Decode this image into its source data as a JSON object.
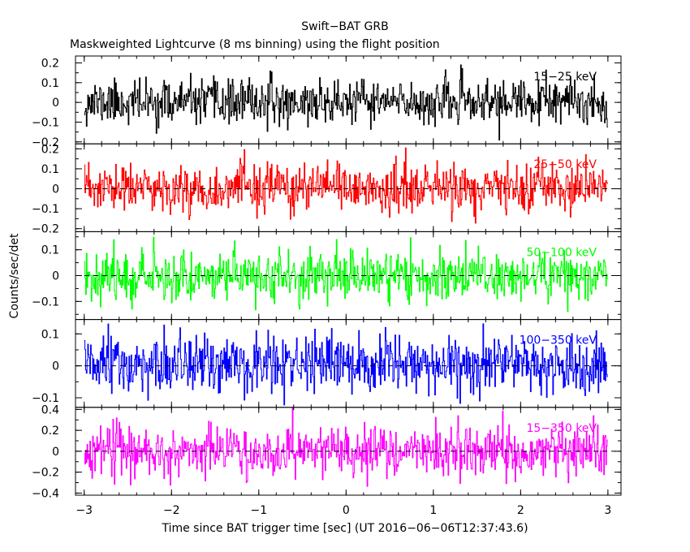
{
  "chart_data": {
    "type": "line",
    "title": "Swift−BAT GRB",
    "subtitle": "Maskweighted Lightcurve (8 ms binning) using the flight position",
    "xlabel": "Time since BAT trigger time [sec] (UT 2016−06−06T12:37:43.6)",
    "ylabel": "Counts/sec/det",
    "xlim": [
      -3.1,
      3.15
    ],
    "x_ticks": [
      -3,
      -2,
      -1,
      0,
      1,
      2,
      3
    ],
    "x_tick_labels": [
      "−3",
      "−2",
      "−1",
      "0",
      "1",
      "2",
      "3"
    ],
    "x_data_range": [
      -3.0,
      3.0
    ],
    "bin_width_sec": 0.008,
    "panels": [
      {
        "name": "15-25-kev",
        "label": "15−25 keV",
        "color": "#000000",
        "ylim": [
          -0.21,
          0.235
        ],
        "yticks": [
          -0.2,
          -0.1,
          0,
          0.1,
          0.2
        ],
        "ytick_labels": [
          "−0.2",
          "−0.1",
          "0",
          "0.1",
          "0.2"
        ],
        "noise_sigma": 0.055,
        "zero_line": false,
        "seed": 11
      },
      {
        "name": "25-50-kev",
        "label": "25−50 keV",
        "color": "#ff0000",
        "ylim": [
          -0.215,
          0.225
        ],
        "yticks": [
          -0.2,
          -0.1,
          0,
          0.1,
          0.2
        ],
        "ytick_labels": [
          "−0.2",
          "−0.1",
          "0",
          "0.1",
          "0.2"
        ],
        "noise_sigma": 0.06,
        "zero_line": true,
        "seed": 23
      },
      {
        "name": "50-100-kev",
        "label": "50−100 keV",
        "color": "#00ff00",
        "ylim": [
          -0.17,
          0.17
        ],
        "yticks": [
          -0.1,
          0,
          0.1
        ],
        "ytick_labels": [
          "−0.1",
          "0",
          "0.1"
        ],
        "noise_sigma": 0.048,
        "zero_line": true,
        "seed": 37
      },
      {
        "name": "100-350-kev",
        "label": "100−350 keV",
        "color": "#0000ff",
        "ylim": [
          -0.13,
          0.145
        ],
        "yticks": [
          -0.1,
          0,
          0.1
        ],
        "ytick_labels": [
          "−0.1",
          "0",
          "0.1"
        ],
        "noise_sigma": 0.045,
        "zero_line": true,
        "seed": 51
      },
      {
        "name": "15-350-kev",
        "label": "15−350 keV",
        "color": "#ff00ff",
        "ylim": [
          -0.42,
          0.42
        ],
        "yticks": [
          -0.4,
          -0.2,
          0,
          0.2,
          0.4
        ],
        "ytick_labels": [
          "−0.4",
          "−0.2",
          "0",
          "0.2",
          "0.4"
        ],
        "noise_sigma": 0.12,
        "zero_line": true,
        "seed": 67
      }
    ]
  }
}
